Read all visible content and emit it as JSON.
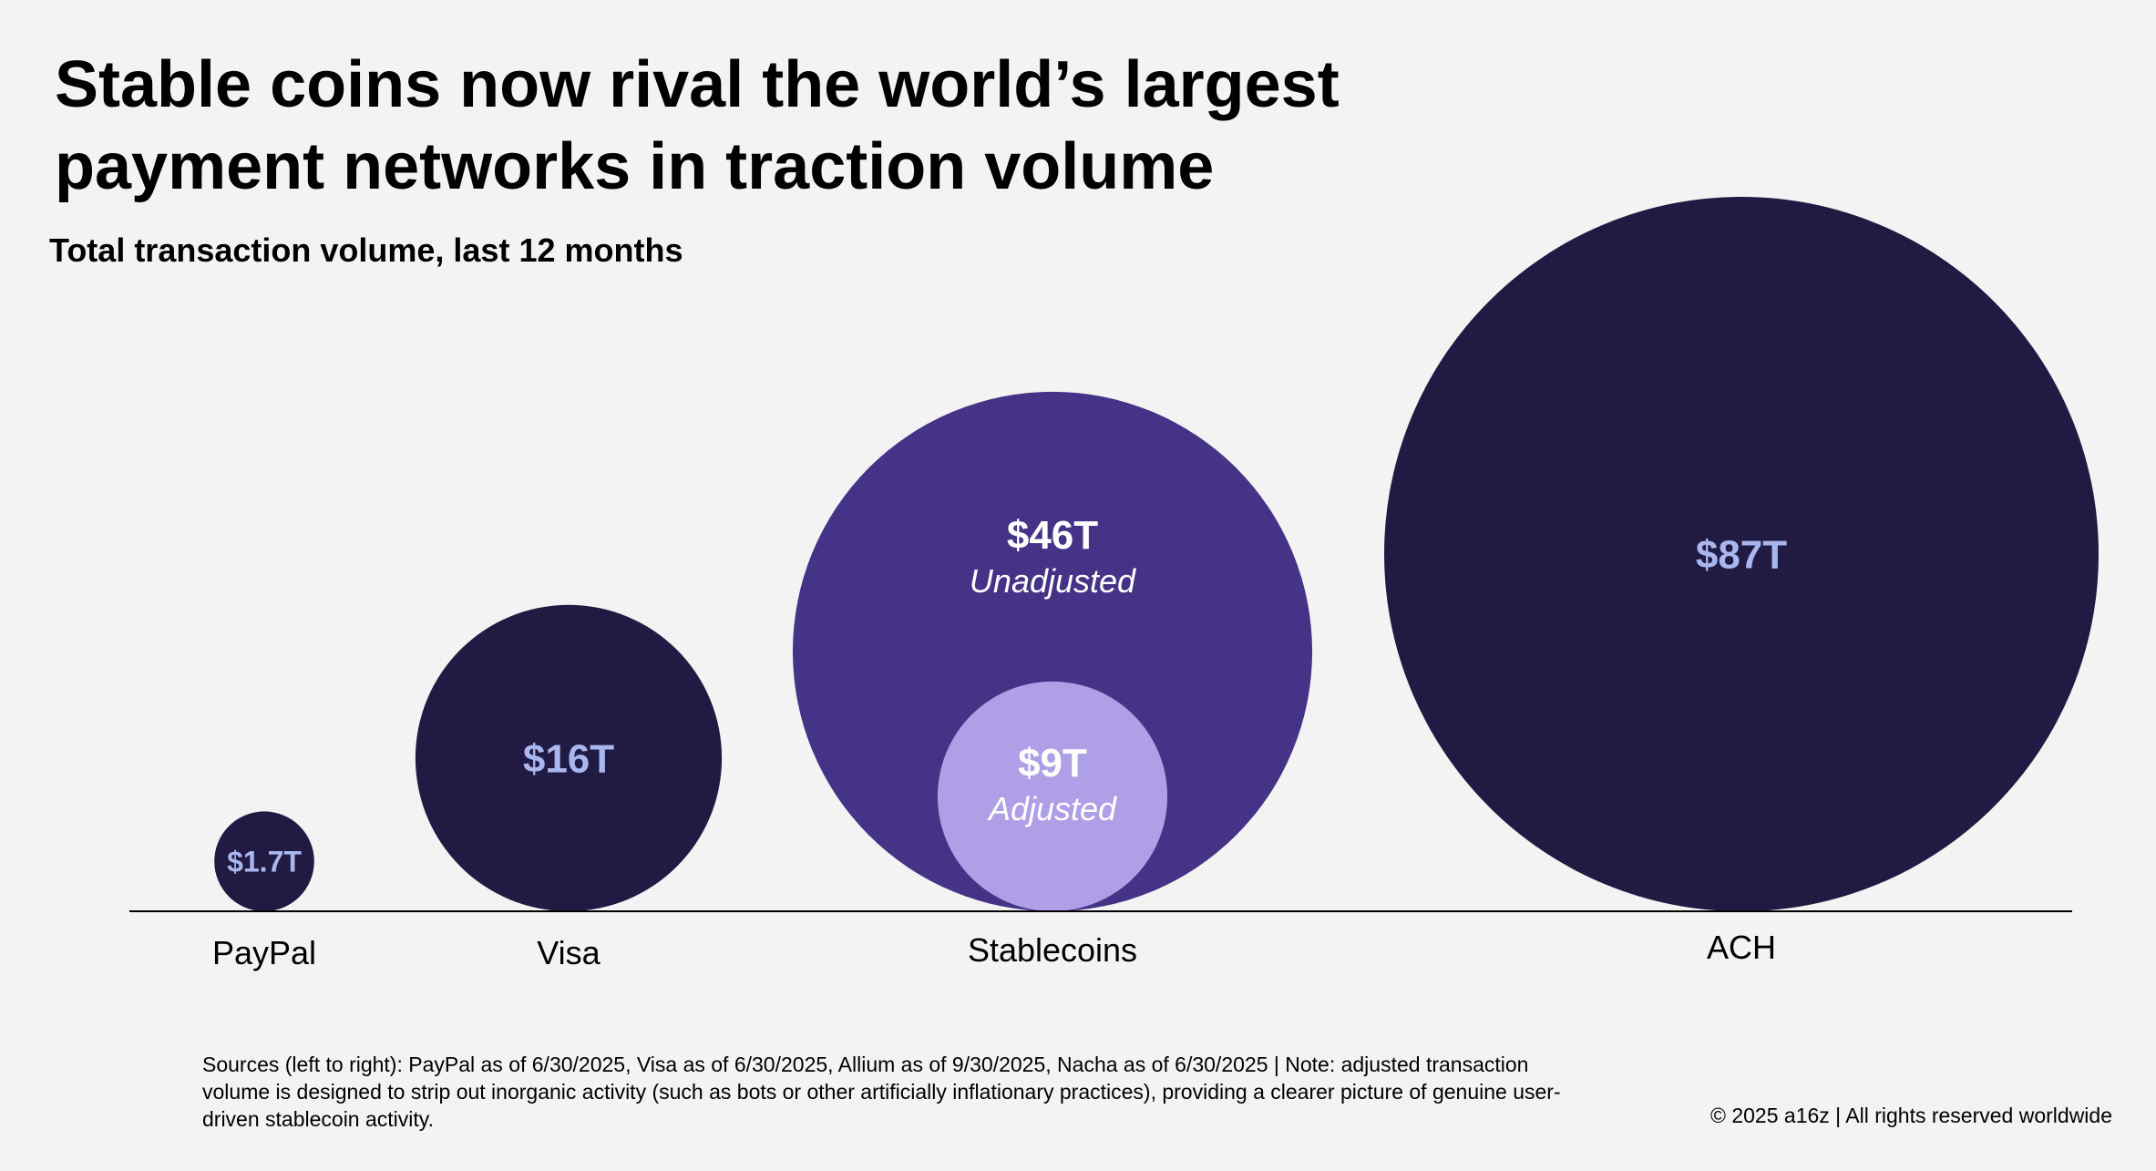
{
  "title_line1": "Stable coins now rival the world’s largest",
  "title_line2": "payment networks in traction volume",
  "subtitle": "Total transaction volume, last 12 months",
  "sources": "Sources (left to right): PayPal as of 6/30/2025, Visa as of 6/30/2025, Allium as of 9/30/2025, Nacha as of 6/30/2025 | Note: adjusted transaction volume is designed to strip out inorganic activity (such as bots or other artificially inflationary practices), providing a clearer picture of genuine user-driven stablecoin activity.",
  "copyright": "© 2025 a16z | All rights reserved worldwide",
  "colors": {
    "dark_navy": "#211a42",
    "stablecoin_purple": "#453387",
    "adjusted_lavender": "#ae9fe6",
    "value_label_blue": "#a9b7ee",
    "white": "#ffffff",
    "baseline": "#000000"
  },
  "chart_data": {
    "type": "bubble",
    "title": "Stable coins now rival the world’s largest payment networks in traction volume",
    "subtitle": "Total transaction volume, last 12 months",
    "categories": [
      "PayPal",
      "Visa",
      "Stablecoins",
      "ACH"
    ],
    "series": [
      {
        "category": "PayPal",
        "value": 1.7,
        "label": "$1.7T",
        "sublabel": ""
      },
      {
        "category": "Visa",
        "value": 16,
        "label": "$16T",
        "sublabel": ""
      },
      {
        "category": "Stablecoins",
        "value": 46,
        "label": "$46T",
        "sublabel": "Unadjusted"
      },
      {
        "category": "Stablecoins",
        "value": 9,
        "label": "$9T",
        "sublabel": "Adjusted"
      },
      {
        "category": "ACH",
        "value": 87,
        "label": "$87T",
        "sublabel": ""
      }
    ],
    "unit": "T"
  }
}
